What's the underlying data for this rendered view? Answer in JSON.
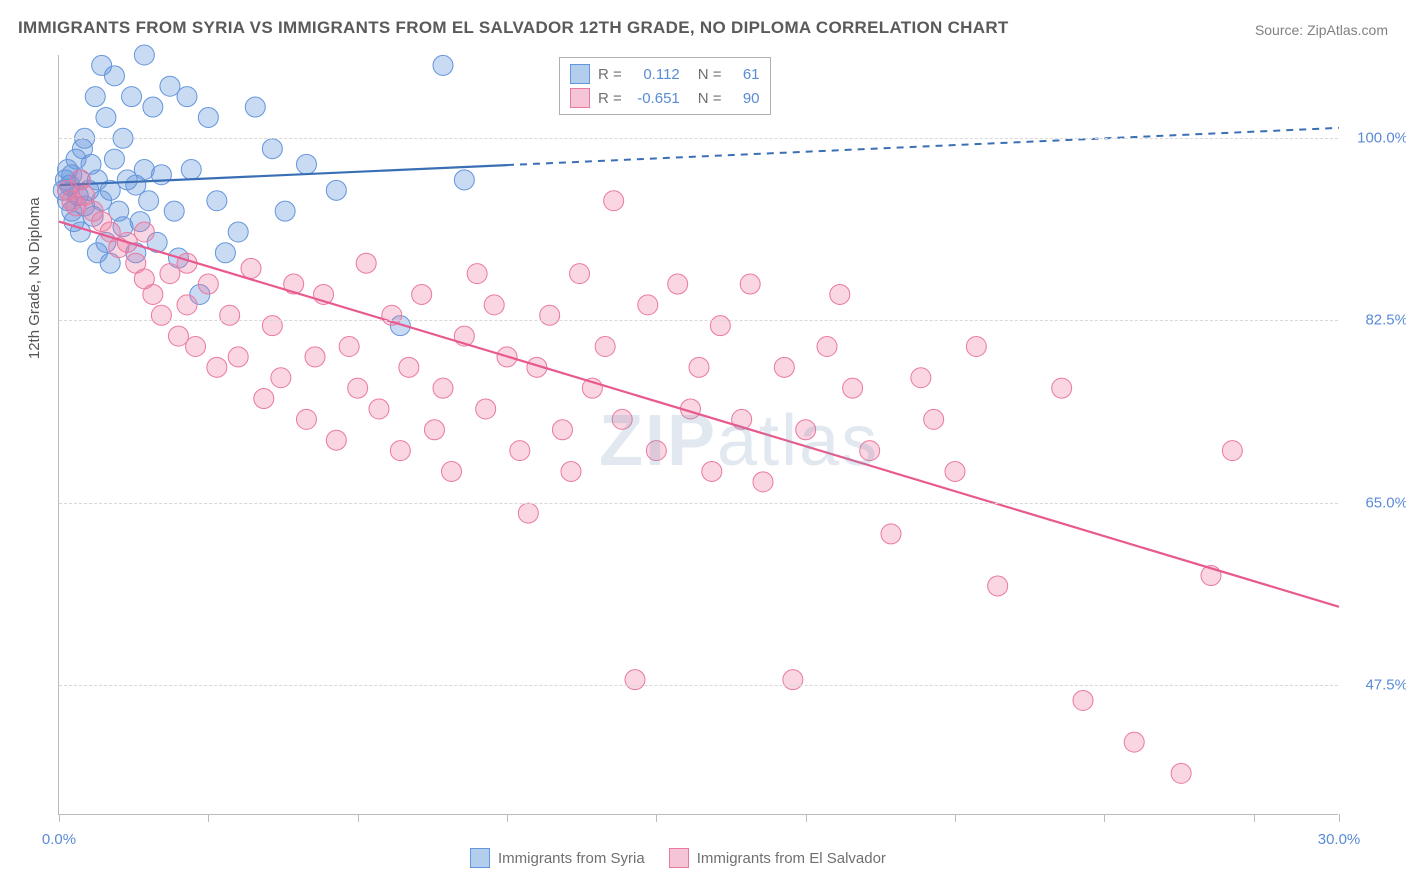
{
  "title": "IMMIGRANTS FROM SYRIA VS IMMIGRANTS FROM EL SALVADOR 12TH GRADE, NO DIPLOMA CORRELATION CHART",
  "source": "Source: ZipAtlas.com",
  "ylabel": "12th Grade, No Diploma",
  "watermark_bold": "ZIP",
  "watermark_rest": "atlas",
  "chart": {
    "type": "scatter",
    "background_color": "#ffffff",
    "grid_color": "#d8d8d8",
    "xlim": [
      0,
      30
    ],
    "ylim": [
      35,
      108
    ],
    "x_tick_positions": [
      0,
      3.5,
      7,
      10.5,
      14,
      17.5,
      21,
      24.5,
      28,
      30
    ],
    "x_tick_labels_shown": {
      "0": "0.0%",
      "30": "30.0%"
    },
    "y_gridlines": [
      47.5,
      65.0,
      82.5,
      100.0
    ],
    "y_tick_labels": [
      "47.5%",
      "65.0%",
      "82.5%",
      "100.0%"
    ],
    "series": [
      {
        "name": "Immigrants from Syria",
        "color_fill": "rgba(100,150,220,0.35)",
        "color_stroke": "#6496dc",
        "line_color": "#3a6fb5",
        "line_solid_to_x": 10.5,
        "trend_start": [
          0,
          95.5
        ],
        "trend_end": [
          30,
          101
        ],
        "R": "0.112",
        "N": "61",
        "points": [
          [
            0.1,
            95
          ],
          [
            0.15,
            96
          ],
          [
            0.2,
            94
          ],
          [
            0.2,
            97
          ],
          [
            0.25,
            95.5
          ],
          [
            0.3,
            93
          ],
          [
            0.3,
            96.5
          ],
          [
            0.35,
            92
          ],
          [
            0.4,
            98
          ],
          [
            0.45,
            94.5
          ],
          [
            0.5,
            91
          ],
          [
            0.5,
            96
          ],
          [
            0.55,
            99
          ],
          [
            0.6,
            93.5
          ],
          [
            0.6,
            100
          ],
          [
            0.7,
            95
          ],
          [
            0.75,
            97.5
          ],
          [
            0.8,
            92.5
          ],
          [
            0.85,
            104
          ],
          [
            0.9,
            89
          ],
          [
            0.9,
            96
          ],
          [
            1.0,
            107
          ],
          [
            1.0,
            94
          ],
          [
            1.1,
            90
          ],
          [
            1.1,
            102
          ],
          [
            1.2,
            95
          ],
          [
            1.2,
            88
          ],
          [
            1.3,
            98
          ],
          [
            1.3,
            106
          ],
          [
            1.4,
            93
          ],
          [
            1.5,
            100
          ],
          [
            1.5,
            91.5
          ],
          [
            1.6,
            96
          ],
          [
            1.7,
            104
          ],
          [
            1.8,
            89
          ],
          [
            1.8,
            95.5
          ],
          [
            1.9,
            92
          ],
          [
            2.0,
            97
          ],
          [
            2.0,
            108
          ],
          [
            2.1,
            94
          ],
          [
            2.2,
            103
          ],
          [
            2.3,
            90
          ],
          [
            2.4,
            96.5
          ],
          [
            2.6,
            105
          ],
          [
            2.7,
            93
          ],
          [
            2.8,
            88.5
          ],
          [
            3.0,
            104
          ],
          [
            3.1,
            97
          ],
          [
            3.3,
            85
          ],
          [
            3.5,
            102
          ],
          [
            3.7,
            94
          ],
          [
            3.9,
            89
          ],
          [
            4.2,
            91
          ],
          [
            4.6,
            103
          ],
          [
            5.0,
            99
          ],
          [
            5.3,
            93
          ],
          [
            5.8,
            97.5
          ],
          [
            6.5,
            95
          ],
          [
            8.0,
            82
          ],
          [
            9.0,
            107
          ],
          [
            9.5,
            96
          ]
        ]
      },
      {
        "name": "Immigrants from El Salvador",
        "color_fill": "rgba(235,120,160,0.30)",
        "color_stroke": "#eb78a0",
        "line_color": "#e85a8f",
        "line_solid_to_x": 30,
        "trend_start": [
          0,
          92
        ],
        "trend_end": [
          30,
          55
        ],
        "R": "-0.651",
        "N": "90",
        "points": [
          [
            0.2,
            95
          ],
          [
            0.3,
            94
          ],
          [
            0.4,
            93.5
          ],
          [
            0.5,
            96
          ],
          [
            0.6,
            94.5
          ],
          [
            0.8,
            93
          ],
          [
            1.0,
            92
          ],
          [
            1.2,
            91
          ],
          [
            1.4,
            89.5
          ],
          [
            1.6,
            90
          ],
          [
            1.8,
            88
          ],
          [
            2.0,
            86.5
          ],
          [
            2.0,
            91
          ],
          [
            2.2,
            85
          ],
          [
            2.4,
            83
          ],
          [
            2.6,
            87
          ],
          [
            2.8,
            81
          ],
          [
            3.0,
            84
          ],
          [
            3.0,
            88
          ],
          [
            3.2,
            80
          ],
          [
            3.5,
            86
          ],
          [
            3.7,
            78
          ],
          [
            4.0,
            83
          ],
          [
            4.2,
            79
          ],
          [
            4.5,
            87.5
          ],
          [
            4.8,
            75
          ],
          [
            5.0,
            82
          ],
          [
            5.2,
            77
          ],
          [
            5.5,
            86
          ],
          [
            5.8,
            73
          ],
          [
            6.0,
            79
          ],
          [
            6.2,
            85
          ],
          [
            6.5,
            71
          ],
          [
            6.8,
            80
          ],
          [
            7.0,
            76
          ],
          [
            7.2,
            88
          ],
          [
            7.5,
            74
          ],
          [
            7.8,
            83
          ],
          [
            8.0,
            70
          ],
          [
            8.2,
            78
          ],
          [
            8.5,
            85
          ],
          [
            8.8,
            72
          ],
          [
            9.0,
            76
          ],
          [
            9.2,
            68
          ],
          [
            9.5,
            81
          ],
          [
            9.8,
            87
          ],
          [
            10.0,
            74
          ],
          [
            10.2,
            84
          ],
          [
            10.5,
            79
          ],
          [
            10.8,
            70
          ],
          [
            11.0,
            64
          ],
          [
            11.2,
            78
          ],
          [
            11.5,
            83
          ],
          [
            11.8,
            72
          ],
          [
            12.0,
            68
          ],
          [
            12.2,
            87
          ],
          [
            12.5,
            76
          ],
          [
            12.8,
            80
          ],
          [
            13.0,
            94
          ],
          [
            13.2,
            73
          ],
          [
            13.5,
            48
          ],
          [
            13.8,
            84
          ],
          [
            14.0,
            70
          ],
          [
            14.5,
            86
          ],
          [
            14.8,
            74
          ],
          [
            15.0,
            78
          ],
          [
            15.3,
            68
          ],
          [
            15.5,
            82
          ],
          [
            16.0,
            73
          ],
          [
            16.2,
            86
          ],
          [
            16.5,
            67
          ],
          [
            17.0,
            78
          ],
          [
            17.2,
            48
          ],
          [
            17.5,
            72
          ],
          [
            18.0,
            80
          ],
          [
            18.3,
            85
          ],
          [
            18.6,
            76
          ],
          [
            19.0,
            70
          ],
          [
            19.5,
            62
          ],
          [
            20.2,
            77
          ],
          [
            20.5,
            73
          ],
          [
            21.0,
            68
          ],
          [
            21.5,
            80
          ],
          [
            22.0,
            57
          ],
          [
            23.5,
            76
          ],
          [
            24.0,
            46
          ],
          [
            25.2,
            42
          ],
          [
            26.3,
            39
          ],
          [
            27.0,
            58
          ],
          [
            27.5,
            70
          ]
        ]
      }
    ]
  },
  "legend": {
    "series1_label": "Immigrants from Syria",
    "series2_label": "Immigrants from El Salvador",
    "r_label": "R =",
    "n_label": "N ="
  },
  "colors": {
    "title": "#5a5a5a",
    "axis_text": "#5a8bd6",
    "label_text": "#707070",
    "swatch1_fill": "#b3cdec",
    "swatch1_border": "#6496dc",
    "swatch2_fill": "#f5c5d7",
    "swatch2_border": "#eb78a0"
  }
}
